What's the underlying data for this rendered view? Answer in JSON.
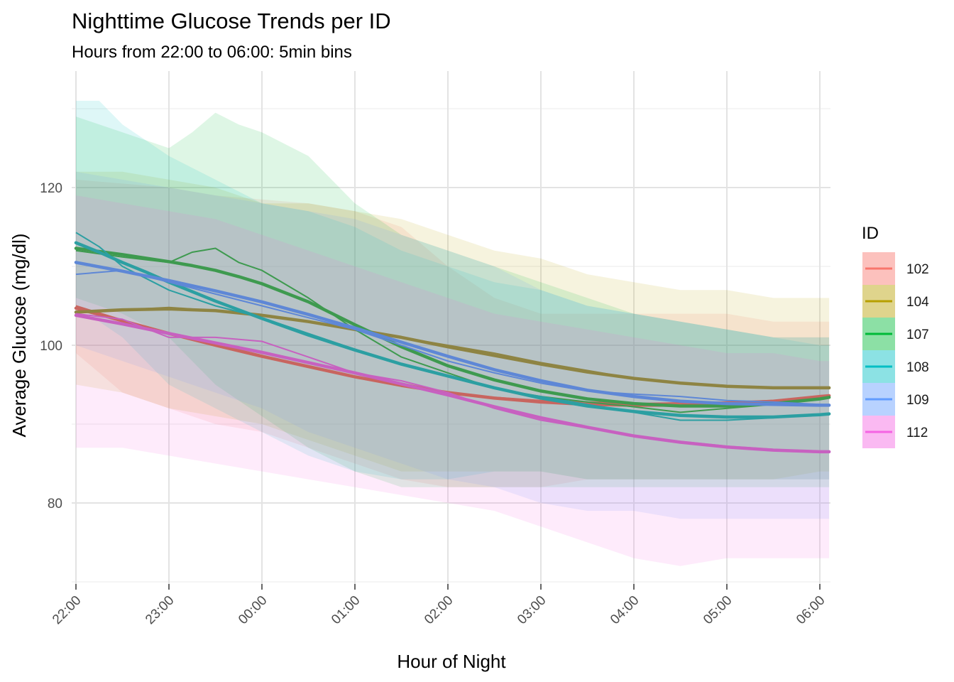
{
  "chart_data": {
    "type": "line",
    "title": "Nighttime Glucose Trends per ID",
    "subtitle": "Hours from 22:00 to 06:00: 5min bins",
    "xlabel": "Hour of Night",
    "ylabel": "Average Glucose (mg/dl)",
    "x_ticks": [
      "22:00",
      "23:00",
      "00:00",
      "01:00",
      "02:00",
      "03:00",
      "04:00",
      "05:00",
      "06:00"
    ],
    "x_range_hours": [
      0,
      8.1
    ],
    "y_ticks": [
      80,
      100,
      120
    ],
    "ylim": [
      70,
      132
    ],
    "grid": true,
    "legend": {
      "title": "ID",
      "placement": "right"
    },
    "series": [
      {
        "name": "102",
        "color": "#F8766D",
        "x": [
          0,
          0.5,
          1,
          1.5,
          2,
          2.5,
          3,
          3.5,
          4,
          4.5,
          5,
          5.5,
          6,
          6.5,
          7,
          7.5,
          8,
          8.1
        ],
        "mean": [
          105,
          103.2,
          101.5,
          100.2,
          99,
          97.8,
          96.5,
          95.2,
          94,
          93.4,
          93,
          92.8,
          92.6,
          92.7,
          92.8,
          93,
          93.4,
          93.5
        ],
        "smooth": [
          104.7,
          103.1,
          101.5,
          100,
          98.6,
          97.3,
          96,
          94.9,
          94,
          93.3,
          92.8,
          92.5,
          92.4,
          92.4,
          92.6,
          92.9,
          93.5,
          93.6
        ],
        "upper": [
          121,
          120.5,
          120,
          119,
          118.5,
          118,
          117,
          115,
          110,
          106,
          104,
          104,
          104,
          104,
          104,
          103,
          103,
          103
        ],
        "lower": [
          99,
          94,
          92,
          90,
          89,
          87,
          85,
          83,
          82,
          82,
          82,
          83,
          83,
          83,
          83,
          83,
          83,
          83
        ]
      },
      {
        "name": "104",
        "color": "#B79F00",
        "x": [
          0,
          0.5,
          1,
          1.5,
          2,
          2.5,
          3,
          3.5,
          4,
          4.5,
          5,
          5.5,
          6,
          6.5,
          7,
          7.5,
          8,
          8.1
        ],
        "mean": [
          104.2,
          104.5,
          104.8,
          104.4,
          103.8,
          103,
          102,
          101,
          100,
          99,
          97.8,
          96.8,
          95.8,
          95.2,
          94.8,
          94.6,
          94.5,
          94.5
        ],
        "smooth": [
          104.2,
          104.5,
          104.6,
          104.4,
          103.8,
          103,
          102,
          101,
          99.8,
          98.7,
          97.6,
          96.6,
          95.8,
          95.2,
          94.8,
          94.6,
          94.6,
          94.6
        ],
        "upper": [
          122,
          122,
          121,
          120,
          118,
          118,
          117,
          116,
          114,
          112,
          111,
          109,
          108,
          107,
          107,
          106,
          106,
          106
        ],
        "lower": [
          95,
          94,
          92,
          91,
          90,
          88,
          86,
          84,
          84,
          84,
          84,
          83,
          83,
          83,
          83,
          83,
          84,
          84
        ]
      },
      {
        "name": "107",
        "color": "#00BA38",
        "x": [
          0,
          0.5,
          1,
          1.25,
          1.5,
          1.75,
          2,
          2.5,
          3,
          3.5,
          4,
          4.5,
          5,
          5.5,
          6,
          6.5,
          7,
          7.5,
          8,
          8.1
        ],
        "mean": [
          112,
          111.2,
          110.5,
          111.8,
          112.3,
          110.5,
          109.5,
          106,
          102,
          98.5,
          96.5,
          94.5,
          93.5,
          92.8,
          92.2,
          91.5,
          92,
          92.5,
          93.2,
          93.4
        ],
        "smooth": [
          112.3,
          111.5,
          110.6,
          110.1,
          109.5,
          108.7,
          107.8,
          105.5,
          102.6,
          99.8,
          97.4,
          95.6,
          94.2,
          93.2,
          92.6,
          92.3,
          92.3,
          92.6,
          93.2,
          93.4
        ],
        "upper": [
          129,
          127,
          125,
          127,
          129.5,
          128,
          127,
          124,
          118,
          114,
          112,
          110,
          108,
          106,
          104,
          103,
          102,
          101,
          101,
          101
        ],
        "lower": [
          106,
          104,
          101,
          98,
          95,
          93,
          91,
          87,
          84,
          82,
          82,
          82,
          82,
          82,
          82,
          82,
          82,
          82,
          82,
          82
        ]
      },
      {
        "name": "108",
        "color": "#00BFC4",
        "x": [
          0,
          0.25,
          0.5,
          0.75,
          1,
          1.5,
          2,
          2.5,
          3,
          3.5,
          4,
          4.5,
          5,
          5.5,
          6,
          6.5,
          7,
          7.5,
          8,
          8.1
        ],
        "mean": [
          114.3,
          112.5,
          110,
          108.5,
          107,
          105,
          103.5,
          101.5,
          99.5,
          97.5,
          96,
          94.5,
          93.5,
          92.5,
          91.5,
          90.5,
          90.5,
          90.8,
          91.3,
          91.2
        ],
        "smooth": [
          113,
          111.8,
          110.5,
          109.3,
          108,
          105.6,
          103.4,
          101.3,
          99.4,
          97.6,
          96.1,
          94.6,
          93.3,
          92.3,
          91.6,
          91.1,
          90.9,
          90.9,
          91.2,
          91.3
        ],
        "upper": [
          131,
          131,
          128,
          126,
          124,
          121,
          118,
          117,
          115,
          112,
          110,
          108,
          107,
          105,
          104,
          103,
          102,
          101,
          100,
          100
        ],
        "lower": [
          105,
          103,
          101,
          98,
          95,
          92,
          89,
          86,
          84,
          83,
          83,
          84,
          84,
          83,
          83,
          83,
          83,
          83,
          83,
          83
        ]
      },
      {
        "name": "109",
        "color": "#619CFF",
        "x": [
          0,
          0.5,
          1,
          1.5,
          2,
          2.5,
          3,
          3.5,
          4,
          4.5,
          5,
          5.5,
          6,
          6.5,
          7,
          7.5,
          8,
          8.1
        ],
        "mean": [
          109,
          109.5,
          108,
          106.5,
          105,
          103.5,
          102,
          100,
          98,
          96.5,
          95.2,
          94.2,
          93.8,
          93.5,
          93,
          92.8,
          92.5,
          92.4
        ],
        "smooth": [
          110.5,
          109.4,
          108.2,
          106.9,
          105.5,
          103.9,
          102.2,
          100.4,
          98.6,
          96.9,
          95.5,
          94.3,
          93.5,
          92.9,
          92.6,
          92.5,
          92.4,
          92.4
        ],
        "upper": [
          122,
          121,
          120,
          119,
          118,
          117,
          116,
          114,
          112,
          110,
          107,
          105,
          104,
          103,
          102,
          101,
          101,
          101
        ],
        "lower": [
          100,
          98,
          96,
          94,
          92,
          89,
          87,
          85,
          83,
          82,
          80,
          79,
          79,
          78,
          78,
          78,
          78,
          78
        ]
      },
      {
        "name": "112",
        "color": "#F564E3",
        "x": [
          0,
          0.5,
          1,
          1.5,
          2,
          2.5,
          3,
          3.5,
          4,
          4.5,
          5,
          5.5,
          6,
          6.5,
          7,
          7.5,
          8,
          8.1
        ],
        "mean": [
          104,
          103.3,
          101,
          101,
          100.5,
          98.5,
          96.5,
          95.5,
          94,
          92,
          90.5,
          89.5,
          88.5,
          87.8,
          87.2,
          86.8,
          86.5,
          86.5
        ],
        "smooth": [
          103.8,
          102.7,
          101.5,
          100.3,
          99.1,
          97.8,
          96.5,
          95.1,
          93.7,
          92.2,
          90.8,
          89.6,
          88.5,
          87.7,
          87.1,
          86.7,
          86.5,
          86.5
        ],
        "upper": [
          119,
          118,
          117,
          116,
          114,
          112,
          110,
          108,
          106,
          104,
          103,
          102,
          101,
          100,
          99,
          99,
          98,
          98
        ],
        "lower": [
          87,
          87,
          86,
          85,
          84,
          83,
          82,
          81,
          80,
          79,
          77,
          75,
          73,
          72,
          73,
          73,
          73,
          73
        ]
      }
    ]
  }
}
